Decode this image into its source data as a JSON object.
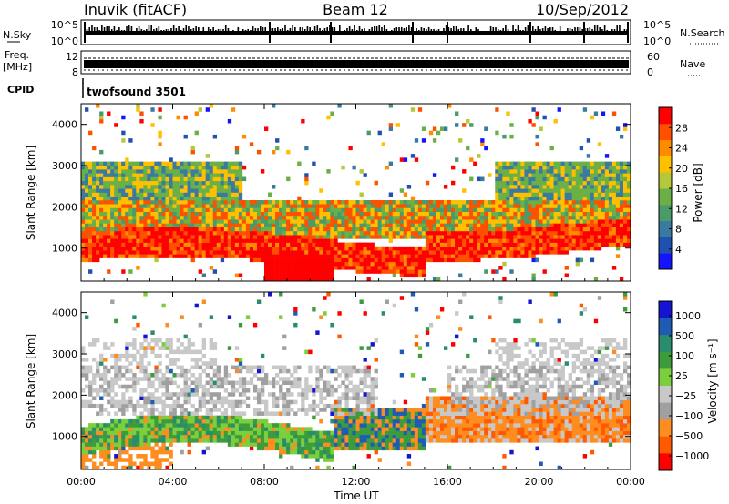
{
  "header": {
    "station": "Inuvik (fitACF)",
    "beam": "Beam 12",
    "date": "10/Sep/2012"
  },
  "strips": {
    "nsky_label": "N.Sky",
    "nsky_top": "10^5",
    "nsky_bottom": "10^0",
    "nsearch_label": "N.Search",
    "nsearch_top": "10^5",
    "nsearch_bottom": "10^0",
    "freq_label": "Freq.",
    "freq_unit": "[MHz]",
    "freq_top": "12",
    "freq_bottom": "8",
    "nave_label": "Nave",
    "nave_top": "60",
    "nave_bottom": "0",
    "cpid_label": "CPID",
    "cpid_value": "twofsound 3501"
  },
  "colors": {
    "velocity_scale": [
      "#ff0000",
      "#ff5a00",
      "#ff8c1e",
      "#a0a0a0",
      "#c8c8c8",
      "#7ccf3c",
      "#3c9c3c",
      "#2a8c6e",
      "#1e5cb4",
      "#1414d2"
    ],
    "power_scale": [
      "#1414ff",
      "#2050b0",
      "#3a7aa0",
      "#4a9a6a",
      "#6ab046",
      "#b4c83c",
      "#ffc000",
      "#ff8c00",
      "#ff5000",
      "#ff0000"
    ]
  },
  "chart_data": [
    {
      "type": "heatmap",
      "title": "Power",
      "xlabel": "Time UT",
      "ylabel": "Slant Range [km]",
      "x_ticks": [
        "00:00",
        "04:00",
        "08:00",
        "12:00",
        "16:00",
        "20:00",
        "00:00"
      ],
      "y_ticks": [
        1000,
        2000,
        3000,
        4000
      ],
      "ylim": [
        200,
        4500
      ],
      "colorbar": {
        "label": "Power [dB]",
        "ticks": [
          4,
          8,
          12,
          16,
          20,
          24,
          28
        ],
        "range": [
          0,
          32
        ]
      }
    },
    {
      "type": "heatmap",
      "title": "Velocity",
      "xlabel": "Time UT",
      "ylabel": "Slant Range [km]",
      "x_ticks": [
        "00:00",
        "04:00",
        "08:00",
        "12:00",
        "16:00",
        "20:00",
        "00:00"
      ],
      "y_ticks": [
        1000,
        2000,
        3000,
        4000
      ],
      "ylim": [
        200,
        4500
      ],
      "colorbar": {
        "label": "Velocity [m s⁻¹]",
        "ticks": [
          "1000",
          "500",
          "100",
          "25",
          "−25",
          "−100",
          "−500",
          "−1000"
        ]
      }
    }
  ]
}
